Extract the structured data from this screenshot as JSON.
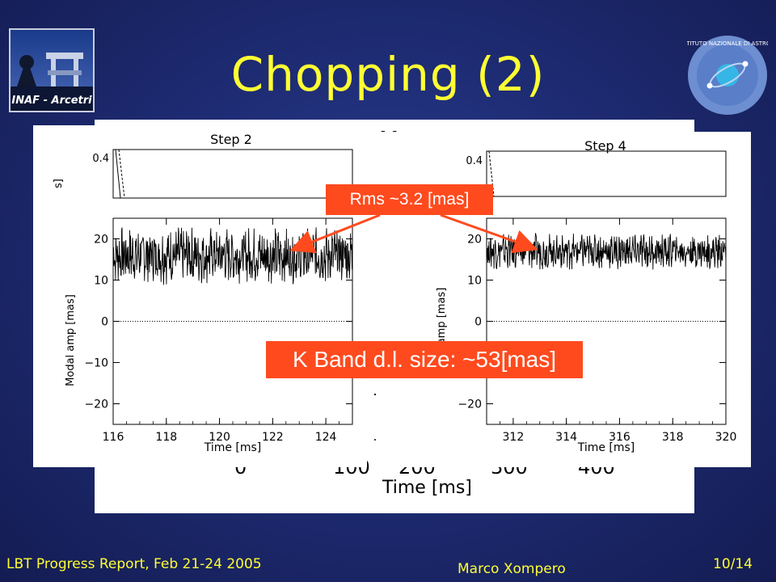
{
  "slide": {
    "title": "Chopping (2)",
    "logo_left_text": "INAF - Arcetri",
    "logo_right_text": "INAF ISTITUTO NAZIONALE DI ASTROFISICA",
    "footer_left": "LBT Progress Report, Feb 21-24 2005",
    "footer_center": "Marco Xompero",
    "footer_right": "10/14",
    "callout_rms": "Rms ~3.2 [mas]",
    "callout_kband": "K Band d.l. size: ~53[mas]",
    "colors": {
      "title": "#ffff33",
      "callout": "#ff4a1e",
      "background": "#1e2c74"
    }
  },
  "background_plot": {
    "title_fragment": "Mo",
    "xlabel": "Time [ms]",
    "xticks_visible": [
      "0",
      "100",
      "200",
      "300",
      "400"
    ]
  },
  "chart_data": [
    {
      "type": "line",
      "title": "Step 2",
      "xlabel": "Time [ms]",
      "ylabel": "Modal amp [mas]",
      "xlim": [
        116,
        125
      ],
      "ylim": [
        -25,
        25
      ],
      "xticks": [
        116,
        118,
        120,
        122,
        124
      ],
      "yticks": [
        -20,
        -10,
        0,
        10,
        20
      ],
      "zero_line": "dotted",
      "series": [
        {
          "mean": 16,
          "noise_amplitude": 5.5
        }
      ],
      "upper_strip": {
        "ytick": "0.4",
        "ylabel_fragment": "s]"
      }
    },
    {
      "type": "line",
      "title": "Step 4",
      "xlabel": "Time [ms]",
      "ylabel": "amp [mas]",
      "xlim": [
        311,
        320
      ],
      "ylim": [
        -25,
        25
      ],
      "xticks": [
        312,
        314,
        316,
        318,
        320
      ],
      "yticks": [
        -20,
        -10,
        0,
        10,
        20
      ],
      "zero_line": "dotted",
      "series": [
        {
          "mean": 17,
          "noise_amplitude": 3.5
        }
      ],
      "upper_strip": {
        "ytick": "0.4"
      }
    }
  ]
}
